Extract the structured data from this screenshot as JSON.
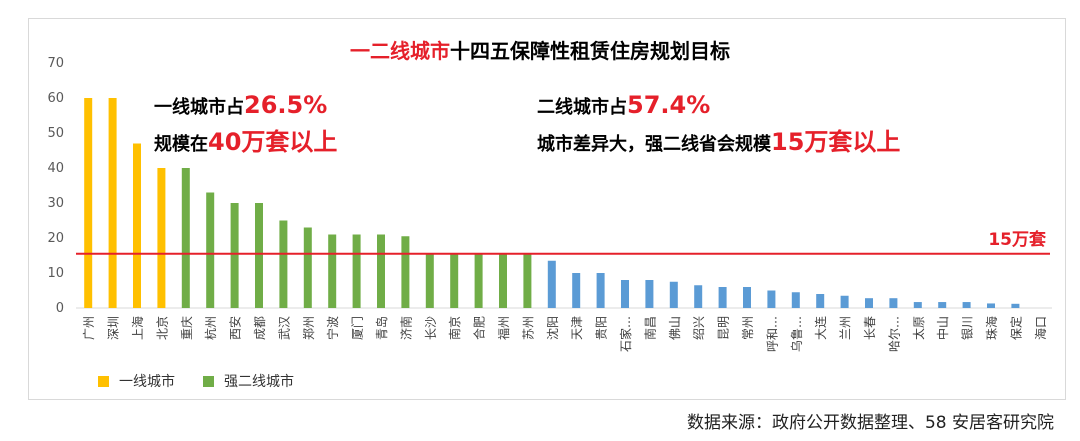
{
  "source": "数据来源：政府公开数据整理、58 安居客研究院",
  "title": {
    "highlight": "一二线城市",
    "rest": "十四五保障性租赁住房规划目标"
  },
  "annotations": {
    "tier1_line1_prefix": "一线城市占",
    "tier1_line1_value": "26.5%",
    "tier1_line2_prefix": "规模在",
    "tier1_line2_value": "40万套以上",
    "tier2_line1_prefix": "二线城市占",
    "tier2_line1_value": "57.4%",
    "tier2_line2_prefix": "城市差异大，强二线省会规模",
    "tier2_line2_value": "15万套以上"
  },
  "colors": {
    "tier1": "#ffc000",
    "strong_tier2": "#70ad47",
    "tier2": "#5b9bd5",
    "reference_line": "#e5202a"
  },
  "chart_data": {
    "type": "bar",
    "title": "一二线城市十四五保障性租赁住房规划目标",
    "ylim": [
      0,
      70
    ],
    "yticks": [
      0,
      10,
      20,
      30,
      40,
      50,
      60,
      70
    ],
    "categories": [
      "广州",
      "深圳",
      "上海",
      "北京",
      "重庆",
      "杭州",
      "西安",
      "成都",
      "武汉",
      "郑州",
      "宁波",
      "厦门",
      "青岛",
      "济南",
      "长沙",
      "南京",
      "合肥",
      "福州",
      "苏州",
      "沈阳",
      "天津",
      "贵阳",
      "石家…",
      "南昌",
      "佛山",
      "绍兴",
      "昆明",
      "常州",
      "呼和…",
      "乌鲁…",
      "大连",
      "兰州",
      "长春",
      "哈尔…",
      "太原",
      "中山",
      "银川",
      "珠海",
      "保定",
      "海口"
    ],
    "values": [
      60,
      60,
      47,
      40,
      40,
      33,
      30,
      30,
      25,
      23,
      21,
      21,
      21,
      20.5,
      15.5,
      15.5,
      15.5,
      15.5,
      15.5,
      13.5,
      10,
      10,
      8,
      8,
      7.5,
      6.5,
      6,
      6,
      5,
      4.5,
      4,
      3.5,
      2.8,
      2.8,
      1.7,
      1.7,
      1.7,
      1.3,
      1.2,
      0
    ],
    "groups": [
      "tier1",
      "tier1",
      "tier1",
      "tier1",
      "strong_tier2",
      "strong_tier2",
      "strong_tier2",
      "strong_tier2",
      "strong_tier2",
      "strong_tier2",
      "strong_tier2",
      "strong_tier2",
      "strong_tier2",
      "strong_tier2",
      "strong_tier2",
      "strong_tier2",
      "strong_tier2",
      "strong_tier2",
      "strong_tier2",
      "tier2",
      "tier2",
      "tier2",
      "tier2",
      "tier2",
      "tier2",
      "tier2",
      "tier2",
      "tier2",
      "tier2",
      "tier2",
      "tier2",
      "tier2",
      "tier2",
      "tier2",
      "tier2",
      "tier2",
      "tier2",
      "tier2",
      "tier2",
      "tier2"
    ],
    "legend": [
      {
        "group": "tier1",
        "label": "一线城市"
      },
      {
        "group": "strong_tier2",
        "label": "强二线城市"
      }
    ],
    "legend_position": "bottom-left",
    "reference_line": {
      "value": 15.5,
      "label": "15万套"
    },
    "grid": false
  }
}
